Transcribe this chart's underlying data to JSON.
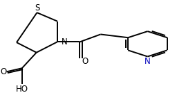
{
  "bg_color": "#ffffff",
  "line_color": "#000000",
  "bond_lw": 1.4,
  "figsize": [
    2.69,
    1.47
  ],
  "dpi": 100,
  "xlim": [
    0.0,
    1.0
  ],
  "ylim": [
    0.0,
    1.0
  ]
}
